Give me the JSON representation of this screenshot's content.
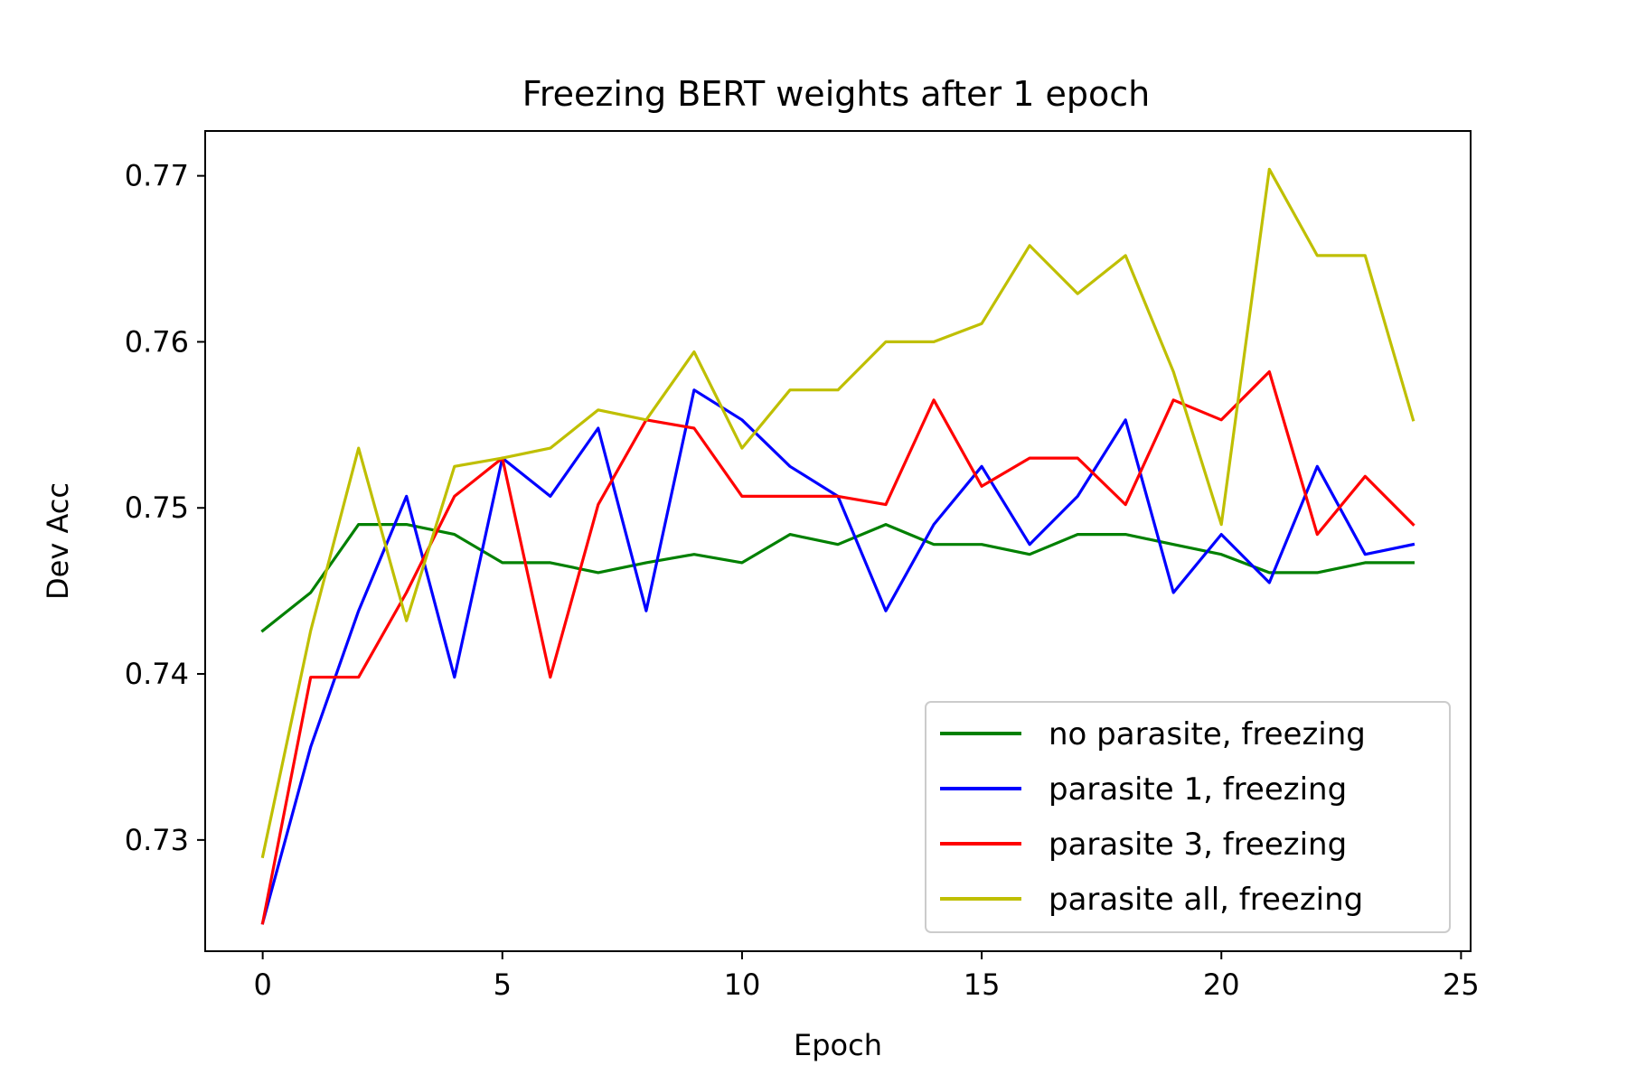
{
  "chart_data": {
    "type": "line",
    "title": "Freezing BERT weights after 1 epoch",
    "xlabel": "Epoch",
    "ylabel": "Dev Acc",
    "xlim": [
      -1.2,
      25.2
    ],
    "ylim": [
      0.7233,
      0.7727
    ],
    "xticks": [
      0,
      5,
      10,
      15,
      20,
      25
    ],
    "xtick_labels": [
      "0",
      "5",
      "10",
      "15",
      "20",
      "25"
    ],
    "yticks": [
      0.73,
      0.74,
      0.75,
      0.76,
      0.77
    ],
    "ytick_labels": [
      "0.73",
      "0.74",
      "0.75",
      "0.76",
      "0.77"
    ],
    "grid": false,
    "legend_position": "lower-right",
    "x": [
      0,
      1,
      2,
      3,
      4,
      5,
      6,
      7,
      8,
      9,
      10,
      11,
      12,
      13,
      14,
      15,
      16,
      17,
      18,
      19,
      20,
      21,
      22,
      23,
      24
    ],
    "series": [
      {
        "name": "no parasite, freezing",
        "color": "#008000",
        "values": [
          0.7426,
          0.7449,
          0.749,
          0.749,
          0.7484,
          0.7467,
          0.7467,
          0.7461,
          0.7467,
          0.7472,
          0.7467,
          0.7484,
          0.7478,
          0.749,
          0.7478,
          0.7478,
          0.7472,
          0.7484,
          0.7484,
          0.7478,
          0.7472,
          0.7461,
          0.7461,
          0.7467,
          0.7467
        ]
      },
      {
        "name": "parasite 1, freezing",
        "color": "#0000ff",
        "values": [
          0.725,
          0.7356,
          0.7438,
          0.7507,
          0.7398,
          0.753,
          0.7507,
          0.7548,
          0.7438,
          0.7571,
          0.7553,
          0.7525,
          0.7507,
          0.7438,
          0.749,
          0.7525,
          0.7478,
          0.7507,
          0.7553,
          0.7449,
          0.7484,
          0.7455,
          0.7525,
          0.7472,
          0.7478
        ]
      },
      {
        "name": "parasite 3, freezing",
        "color": "#ff0000",
        "values": [
          0.725,
          0.7398,
          0.7398,
          0.7449,
          0.7507,
          0.753,
          0.7398,
          0.7502,
          0.7553,
          0.7548,
          0.7507,
          0.7507,
          0.7507,
          0.7502,
          0.7565,
          0.7513,
          0.753,
          0.753,
          0.7502,
          0.7565,
          0.7553,
          0.7582,
          0.7484,
          0.7519,
          0.749
        ]
      },
      {
        "name": "parasite all, freezing",
        "color": "#bfbf00",
        "values": [
          0.729,
          0.7426,
          0.7536,
          0.7432,
          0.7525,
          0.753,
          0.7536,
          0.7559,
          0.7553,
          0.7594,
          0.7536,
          0.7571,
          0.7571,
          0.76,
          0.76,
          0.7611,
          0.7658,
          0.7629,
          0.7652,
          0.7582,
          0.749,
          0.7704,
          0.7652,
          0.7652,
          0.7553
        ]
      }
    ]
  }
}
